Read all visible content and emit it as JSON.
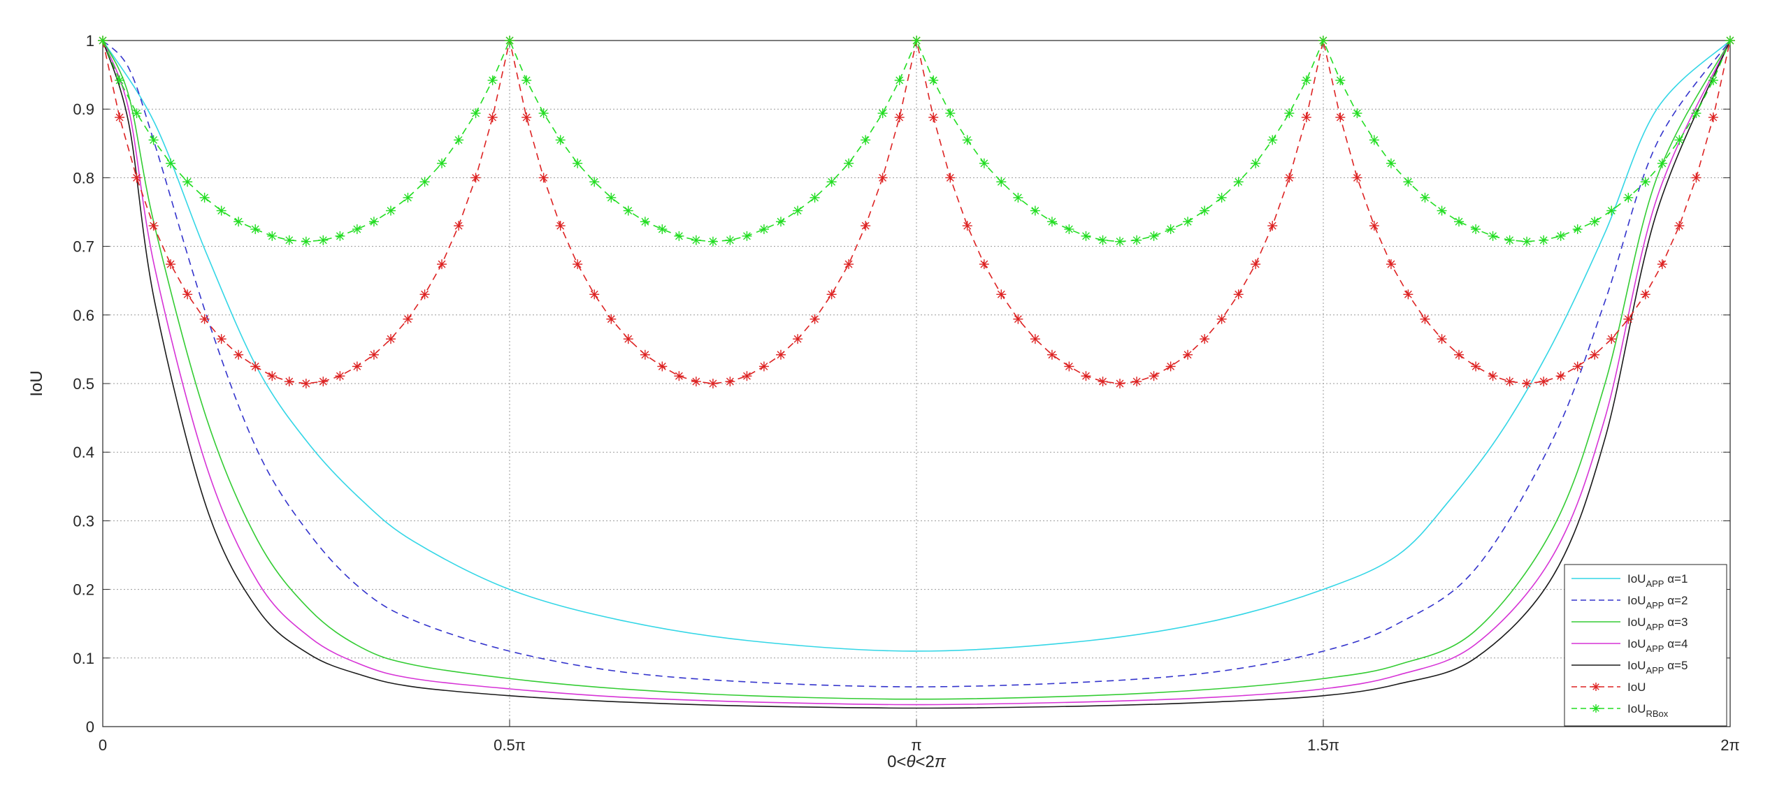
{
  "chart_data": {
    "type": "line",
    "xlabel_parts": [
      "0<",
      "θ",
      "<2",
      "π"
    ],
    "ylabel": "IoU",
    "xlim": [
      0,
      6.283185307179586
    ],
    "ylim": [
      0,
      1
    ],
    "grid": true,
    "grid_style": "dotted",
    "legend_position": "bottom-right",
    "x_ticks": [
      {
        "value": 0,
        "label": "0"
      },
      {
        "value": 1.5707963267948966,
        "label": "0.5π"
      },
      {
        "value": 3.141592653589793,
        "label": "π"
      },
      {
        "value": 4.71238898038469,
        "label": "1.5π"
      },
      {
        "value": 6.283185307179586,
        "label": "2π"
      }
    ],
    "y_ticks": [
      {
        "value": 0,
        "label": "0"
      },
      {
        "value": 0.1,
        "label": "0.1"
      },
      {
        "value": 0.2,
        "label": "0.2"
      },
      {
        "value": 0.3,
        "label": "0.3"
      },
      {
        "value": 0.4,
        "label": "0.4"
      },
      {
        "value": 0.5,
        "label": "0.5"
      },
      {
        "value": 0.6,
        "label": "0.6"
      },
      {
        "value": 0.7,
        "label": "0.7"
      },
      {
        "value": 0.8,
        "label": "0.8"
      },
      {
        "value": 0.9,
        "label": "0.9"
      },
      {
        "value": 1,
        "label": "1"
      }
    ],
    "series": [
      {
        "name": "IoU_APP α=1",
        "label_main": "IoU",
        "label_sub": "APP",
        "label_suffix": " α=1",
        "color": "#33d6e6",
        "line_style": "solid",
        "marker": "none",
        "x": [
          0,
          0.2,
          0.4,
          0.6,
          0.8,
          1.0,
          1.2,
          1.5708,
          2.0,
          2.5,
          3.1416,
          3.8,
          4.3,
          4.7124,
          5.0,
          5.2,
          5.4,
          5.6,
          5.8,
          6.0,
          6.2832
        ],
        "values": [
          1.0,
          0.88,
          0.69,
          0.52,
          0.41,
          0.33,
          0.27,
          0.2,
          0.155,
          0.125,
          0.11,
          0.125,
          0.155,
          0.2,
          0.25,
          0.33,
          0.43,
          0.56,
          0.72,
          0.9,
          1.0
        ]
      },
      {
        "name": "IoU_APP α=2",
        "label_main": "IoU",
        "label_sub": "APP",
        "label_suffix": " α=2",
        "color": "#3333cc",
        "line_style": "dashed",
        "marker": "none",
        "x": [
          0,
          0.1,
          0.2,
          0.4,
          0.6,
          0.8,
          1.0,
          1.2,
          1.5708,
          2.0,
          2.5,
          3.1416,
          3.8,
          4.3,
          4.7124,
          5.0,
          5.3,
          5.6,
          5.8,
          6.0,
          6.2832
        ],
        "values": [
          1.0,
          0.96,
          0.85,
          0.6,
          0.4,
          0.28,
          0.2,
          0.155,
          0.11,
          0.08,
          0.065,
          0.058,
          0.065,
          0.08,
          0.11,
          0.15,
          0.23,
          0.42,
          0.62,
          0.85,
          1.0
        ]
      },
      {
        "name": "IoU_APP α=3",
        "label_main": "IoU",
        "label_sub": "APP",
        "label_suffix": " α=3",
        "color": "#33cc33",
        "line_style": "solid",
        "marker": "none",
        "x": [
          0,
          0.1,
          0.2,
          0.4,
          0.6,
          0.8,
          1.0,
          1.2,
          1.5708,
          2.0,
          2.5,
          3.1416,
          3.8,
          4.3,
          4.7124,
          5.0,
          5.3,
          5.6,
          5.8,
          6.0,
          6.2832
        ],
        "values": [
          1.0,
          0.92,
          0.73,
          0.45,
          0.27,
          0.17,
          0.115,
          0.09,
          0.07,
          0.055,
          0.045,
          0.04,
          0.045,
          0.055,
          0.07,
          0.09,
          0.14,
          0.29,
          0.5,
          0.8,
          1.0
        ]
      },
      {
        "name": "IoU_APP α=4",
        "label_main": "IoU",
        "label_sub": "APP",
        "label_suffix": " α=4",
        "color": "#d633d6",
        "line_style": "solid",
        "marker": "none",
        "x": [
          0,
          0.1,
          0.2,
          0.4,
          0.6,
          0.8,
          1.0,
          1.2,
          1.5708,
          2.0,
          2.5,
          3.1416,
          3.8,
          4.3,
          4.7124,
          5.0,
          5.3,
          5.6,
          5.8,
          6.0,
          6.2832
        ],
        "values": [
          1.0,
          0.9,
          0.67,
          0.38,
          0.21,
          0.13,
          0.09,
          0.07,
          0.055,
          0.043,
          0.036,
          0.032,
          0.036,
          0.043,
          0.055,
          0.075,
          0.12,
          0.25,
          0.45,
          0.77,
          1.0
        ]
      },
      {
        "name": "IoU_APP α=5",
        "label_main": "IoU",
        "label_sub": "APP",
        "label_suffix": " α=5",
        "color": "#1a1a1a",
        "line_style": "solid",
        "marker": "none",
        "x": [
          0,
          0.1,
          0.2,
          0.4,
          0.6,
          0.8,
          1.0,
          1.2,
          1.5708,
          2.0,
          2.5,
          3.1416,
          3.8,
          4.3,
          4.7124,
          5.0,
          5.3,
          5.6,
          5.8,
          6.0,
          6.2832
        ],
        "values": [
          1.0,
          0.88,
          0.62,
          0.32,
          0.17,
          0.105,
          0.075,
          0.058,
          0.045,
          0.036,
          0.03,
          0.027,
          0.03,
          0.036,
          0.045,
          0.062,
          0.1,
          0.22,
          0.42,
          0.75,
          1.0
        ]
      },
      {
        "name": "IoU",
        "label_main": "IoU",
        "label_sub": "",
        "label_suffix": "",
        "color": "#dd2222",
        "line_style": "dashed",
        "marker": "asterisk",
        "x": [
          0,
          0.065,
          0.131,
          0.196,
          0.262,
          0.327,
          0.393,
          0.458,
          0.524,
          0.589,
          0.654,
          0.72,
          0.785,
          0.851,
          0.916,
          0.982,
          1.047,
          1.112,
          1.178,
          1.243,
          1.309,
          1.374,
          1.44,
          1.505,
          1.571,
          1.636,
          1.702,
          1.767,
          1.833,
          1.898,
          1.963,
          2.029,
          2.094,
          2.16,
          2.225,
          2.291,
          2.356,
          2.422,
          2.487,
          2.553,
          2.618,
          2.683,
          2.749,
          2.814,
          2.88,
          2.945,
          3.011,
          3.076,
          3.142,
          3.207,
          3.272,
          3.338,
          3.403,
          3.469,
          3.534,
          3.6,
          3.665,
          3.731,
          3.796,
          3.861,
          3.927,
          3.992,
          4.058,
          4.123,
          4.189,
          4.254,
          4.32,
          4.385,
          4.451,
          4.516,
          4.581,
          4.647,
          4.712,
          4.778,
          4.843,
          4.909,
          4.974,
          5.04,
          5.105,
          5.17,
          5.236,
          5.301,
          5.367,
          5.432,
          5.498,
          5.563,
          5.629,
          5.694,
          5.76,
          5.825,
          5.89,
          5.956,
          6.021,
          6.087,
          6.152,
          6.218,
          6.283
        ],
        "values": [
          1.0,
          0.888,
          0.8,
          0.73,
          0.674,
          0.63,
          0.594,
          0.565,
          0.542,
          0.525,
          0.511,
          0.503,
          0.5,
          0.503,
          0.511,
          0.525,
          0.542,
          0.565,
          0.594,
          0.63,
          0.674,
          0.73,
          0.8,
          0.888,
          1.0,
          0.888,
          0.8,
          0.73,
          0.674,
          0.63,
          0.594,
          0.565,
          0.542,
          0.525,
          0.511,
          0.503,
          0.5,
          0.503,
          0.511,
          0.525,
          0.542,
          0.565,
          0.594,
          0.63,
          0.674,
          0.73,
          0.8,
          0.888,
          1.0,
          0.888,
          0.8,
          0.73,
          0.674,
          0.63,
          0.594,
          0.565,
          0.542,
          0.525,
          0.511,
          0.503,
          0.5,
          0.503,
          0.511,
          0.525,
          0.542,
          0.565,
          0.594,
          0.63,
          0.674,
          0.73,
          0.8,
          0.888,
          1.0,
          0.888,
          0.8,
          0.73,
          0.674,
          0.63,
          0.594,
          0.565,
          0.542,
          0.525,
          0.511,
          0.503,
          0.5,
          0.503,
          0.511,
          0.525,
          0.542,
          0.565,
          0.594,
          0.63,
          0.674,
          0.73,
          0.8,
          0.888,
          1.0
        ]
      },
      {
        "name": "IoU_RBox",
        "label_main": "IoU",
        "label_sub": "RBox",
        "label_suffix": "",
        "color": "#22dd22",
        "line_style": "dashed",
        "marker": "asterisk",
        "x": [
          0,
          0.065,
          0.131,
          0.196,
          0.262,
          0.327,
          0.393,
          0.458,
          0.524,
          0.589,
          0.654,
          0.72,
          0.785,
          0.851,
          0.916,
          0.982,
          1.047,
          1.112,
          1.178,
          1.243,
          1.309,
          1.374,
          1.44,
          1.505,
          1.571,
          1.636,
          1.702,
          1.767,
          1.833,
          1.898,
          1.963,
          2.029,
          2.094,
          2.16,
          2.225,
          2.291,
          2.356,
          2.422,
          2.487,
          2.553,
          2.618,
          2.683,
          2.749,
          2.814,
          2.88,
          2.945,
          3.011,
          3.076,
          3.142,
          3.207,
          3.272,
          3.338,
          3.403,
          3.469,
          3.534,
          3.6,
          3.665,
          3.731,
          3.796,
          3.861,
          3.927,
          3.992,
          4.058,
          4.123,
          4.189,
          4.254,
          4.32,
          4.385,
          4.451,
          4.516,
          4.581,
          4.647,
          4.712,
          4.778,
          4.843,
          4.909,
          4.974,
          5.04,
          5.105,
          5.17,
          5.236,
          5.301,
          5.367,
          5.432,
          5.498,
          5.563,
          5.629,
          5.694,
          5.76,
          5.825,
          5.89,
          5.956,
          6.021,
          6.087,
          6.152,
          6.218,
          6.283
        ],
        "values": [
          1.0,
          0.942,
          0.894,
          0.855,
          0.821,
          0.794,
          0.771,
          0.752,
          0.736,
          0.725,
          0.715,
          0.709,
          0.707,
          0.709,
          0.715,
          0.725,
          0.736,
          0.752,
          0.771,
          0.794,
          0.821,
          0.855,
          0.894,
          0.942,
          1.0,
          0.942,
          0.894,
          0.855,
          0.821,
          0.794,
          0.771,
          0.752,
          0.736,
          0.725,
          0.715,
          0.709,
          0.707,
          0.709,
          0.715,
          0.725,
          0.736,
          0.752,
          0.771,
          0.794,
          0.821,
          0.855,
          0.894,
          0.942,
          1.0,
          0.942,
          0.894,
          0.855,
          0.821,
          0.794,
          0.771,
          0.752,
          0.736,
          0.725,
          0.715,
          0.709,
          0.707,
          0.709,
          0.715,
          0.725,
          0.736,
          0.752,
          0.771,
          0.794,
          0.821,
          0.855,
          0.894,
          0.942,
          1.0,
          0.942,
          0.894,
          0.855,
          0.821,
          0.794,
          0.771,
          0.752,
          0.736,
          0.725,
          0.715,
          0.709,
          0.707,
          0.709,
          0.715,
          0.725,
          0.736,
          0.752,
          0.771,
          0.794,
          0.821,
          0.855,
          0.894,
          0.942,
          1.0
        ]
      }
    ]
  }
}
